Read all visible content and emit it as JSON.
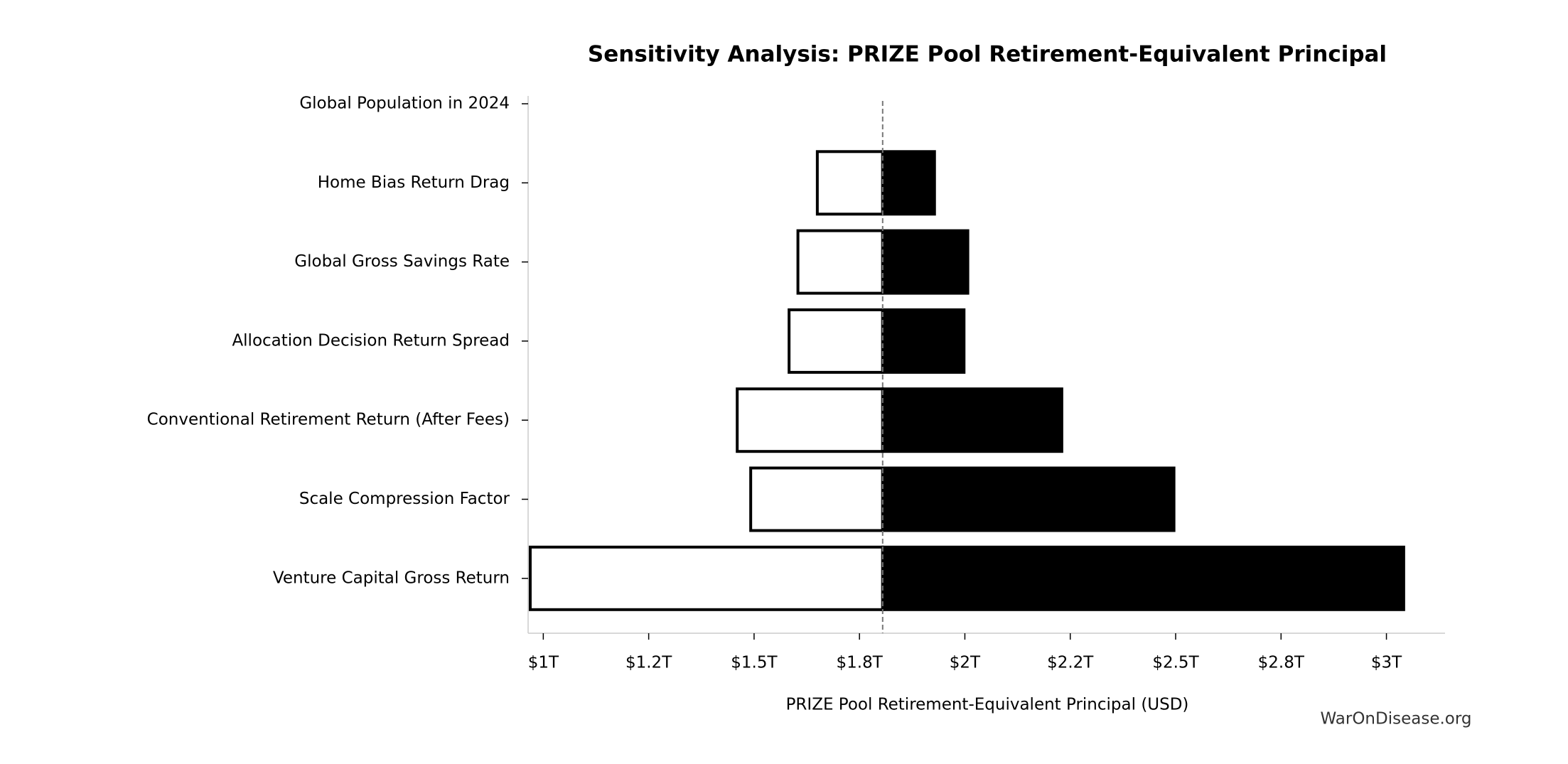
{
  "chart_data": {
    "type": "tornado",
    "title": "Sensitivity Analysis: PRIZE Pool Retirement-Equivalent Principal",
    "xlabel": "PRIZE Pool Retirement-Equivalent Principal (USD)",
    "watermark": "WarOnDisease.org",
    "categories": [
      "Global Population in 2024",
      "Home Bias Return Drag",
      "Global Gross Savings Rate",
      "Allocation Decision Return Spread",
      "Conventional Retirement Return (After Fees)",
      "Scale Compression Factor",
      "Venture Capital Gross Return"
    ],
    "baseline": 1805000000000,
    "series": [
      {
        "color": "#ffffff",
        "values": [
          1805000000000,
          1650000000000,
          1604000000000,
          1583000000000,
          1460000000000,
          1492000000000,
          969000000000
        ]
      },
      {
        "color": "#000000",
        "values": [
          1805000000000,
          1928000000000,
          2007000000000,
          1998000000000,
          2230000000000,
          2496000000000,
          3041000000000
        ]
      }
    ],
    "xlim": [
      964000000000,
      3139000000000
    ],
    "xticks": [
      {
        "value": 1000000000000,
        "label": "$1T"
      },
      {
        "value": 1250000000000,
        "label": "$1.2T"
      },
      {
        "value": 1500000000000,
        "label": "$1.5T"
      },
      {
        "value": 1750000000000,
        "label": "$1.8T"
      },
      {
        "value": 2000000000000,
        "label": "$2T"
      },
      {
        "value": 2250000000000,
        "label": "$2.2T"
      },
      {
        "value": 2500000000000,
        "label": "$2.5T"
      },
      {
        "value": 2750000000000,
        "label": "$2.8T"
      },
      {
        "value": 3000000000000,
        "label": "$3T"
      }
    ]
  }
}
